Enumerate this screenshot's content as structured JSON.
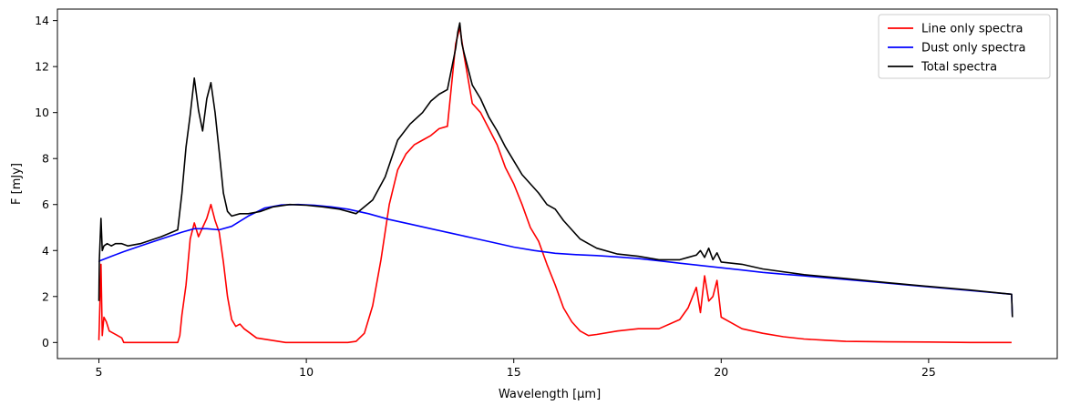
{
  "chart_data": {
    "type": "line",
    "title": "",
    "xlabel": "Wavelength [μm]",
    "ylabel": "F [mJy]",
    "xlim": [
      4.0,
      28.1
    ],
    "ylim": [
      -0.7,
      14.5
    ],
    "xticks": [
      5,
      10,
      15,
      20,
      25
    ],
    "yticks": [
      0,
      2,
      4,
      6,
      8,
      10,
      12,
      14
    ],
    "grid": false,
    "legend_position": "top-right",
    "series": [
      {
        "name": "Line only spectra",
        "color": "#ff0000",
        "x": [
          5.0,
          5.05,
          5.08,
          5.12,
          5.18,
          5.25,
          5.35,
          5.45,
          5.55,
          5.6,
          6.0,
          6.5,
          6.9,
          6.95,
          7.0,
          7.1,
          7.2,
          7.3,
          7.4,
          7.5,
          7.6,
          7.7,
          7.8,
          7.9,
          8.0,
          8.1,
          8.2,
          8.3,
          8.4,
          8.5,
          8.8,
          9.5,
          10.5,
          11.0,
          11.2,
          11.4,
          11.6,
          11.8,
          12.0,
          12.2,
          12.4,
          12.6,
          12.8,
          13.0,
          13.2,
          13.4,
          13.6,
          13.7,
          13.8,
          14.0,
          14.2,
          14.4,
          14.6,
          14.8,
          15.0,
          15.2,
          15.4,
          15.6,
          15.8,
          16.0,
          16.2,
          16.4,
          16.6,
          16.8,
          17.0,
          17.5,
          18.0,
          18.5,
          19.0,
          19.2,
          19.4,
          19.5,
          19.6,
          19.7,
          19.8,
          19.9,
          20.0,
          20.2,
          20.5,
          21.0,
          21.5,
          22.0,
          22.5,
          23.0,
          24.0,
          25.0,
          26.0,
          27.0
        ],
        "y": [
          0.1,
          3.4,
          0.3,
          1.1,
          0.9,
          0.5,
          0.4,
          0.3,
          0.2,
          0.0,
          0.0,
          0.0,
          0.0,
          0.3,
          1.2,
          2.5,
          4.5,
          5.2,
          4.6,
          5.0,
          5.4,
          6.0,
          5.3,
          4.8,
          3.5,
          2.0,
          1.0,
          0.7,
          0.8,
          0.6,
          0.2,
          0.0,
          0.0,
          0.0,
          0.05,
          0.4,
          1.6,
          3.6,
          6.0,
          7.5,
          8.2,
          8.6,
          8.8,
          9.0,
          9.3,
          9.4,
          13.0,
          13.7,
          12.5,
          10.4,
          10.0,
          9.3,
          8.6,
          7.6,
          6.9,
          6.0,
          5.0,
          4.4,
          3.4,
          2.5,
          1.5,
          0.9,
          0.5,
          0.3,
          0.35,
          0.5,
          0.6,
          0.6,
          1.0,
          1.5,
          2.4,
          1.3,
          2.9,
          1.8,
          2.0,
          2.7,
          1.1,
          0.9,
          0.6,
          0.4,
          0.25,
          0.15,
          0.1,
          0.05,
          0.03,
          0.02,
          0.0,
          0.0
        ]
      },
      {
        "name": "Dust only spectra",
        "color": "#0000ff",
        "x": [
          5.0,
          5.02,
          5.3,
          5.6,
          6.0,
          6.5,
          7.0,
          7.3,
          7.6,
          7.9,
          8.2,
          8.6,
          9.0,
          9.4,
          9.8,
          10.2,
          10.6,
          11.0,
          11.5,
          12.0,
          12.5,
          13.0,
          13.5,
          14.0,
          14.5,
          15.0,
          15.5,
          16.0,
          16.5,
          17.0,
          17.5,
          18.0,
          18.5,
          19.0,
          19.5,
          20.0,
          20.5,
          21.0,
          21.5,
          22.0,
          23.0,
          24.0,
          25.0,
          26.0,
          27.0,
          27.02
        ],
        "y": [
          3.5,
          3.55,
          3.75,
          3.95,
          4.2,
          4.5,
          4.8,
          4.95,
          4.95,
          4.9,
          5.05,
          5.5,
          5.85,
          5.98,
          6.0,
          5.97,
          5.9,
          5.8,
          5.6,
          5.35,
          5.15,
          4.95,
          4.75,
          4.55,
          4.35,
          4.15,
          4.0,
          3.88,
          3.82,
          3.78,
          3.72,
          3.65,
          3.55,
          3.45,
          3.35,
          3.25,
          3.15,
          3.05,
          2.97,
          2.9,
          2.74,
          2.58,
          2.42,
          2.26,
          2.1,
          1.1
        ]
      },
      {
        "name": "Total spectra",
        "color": "#000000",
        "x": [
          5.0,
          5.01,
          5.05,
          5.08,
          5.12,
          5.2,
          5.3,
          5.4,
          5.55,
          5.7,
          6.0,
          6.5,
          6.9,
          7.0,
          7.1,
          7.2,
          7.3,
          7.4,
          7.5,
          7.6,
          7.7,
          7.8,
          7.9,
          8.0,
          8.1,
          8.2,
          8.4,
          8.6,
          8.9,
          9.2,
          9.6,
          10.0,
          10.4,
          10.8,
          11.2,
          11.6,
          11.9,
          12.2,
          12.5,
          12.8,
          13.0,
          13.2,
          13.4,
          13.6,
          13.65,
          13.7,
          13.75,
          13.8,
          14.0,
          14.2,
          14.4,
          14.6,
          14.8,
          15.0,
          15.2,
          15.4,
          15.6,
          15.8,
          16.0,
          16.2,
          16.4,
          16.6,
          16.8,
          17.0,
          17.5,
          18.0,
          18.5,
          19.0,
          19.2,
          19.4,
          19.5,
          19.6,
          19.7,
          19.8,
          19.9,
          20.0,
          20.5,
          21.0,
          22.0,
          23.0,
          24.0,
          25.0,
          26.0,
          27.0,
          27.02
        ],
        "y": [
          1.8,
          3.6,
          5.4,
          4.0,
          4.2,
          4.3,
          4.2,
          4.3,
          4.3,
          4.2,
          4.3,
          4.6,
          4.9,
          6.5,
          8.5,
          9.9,
          11.5,
          10.1,
          9.2,
          10.6,
          11.3,
          10.0,
          8.3,
          6.5,
          5.7,
          5.5,
          5.6,
          5.6,
          5.7,
          5.9,
          6.0,
          5.97,
          5.9,
          5.8,
          5.6,
          6.2,
          7.2,
          8.8,
          9.5,
          10.0,
          10.5,
          10.8,
          11.0,
          12.8,
          13.5,
          13.9,
          13.0,
          12.6,
          11.2,
          10.6,
          9.8,
          9.2,
          8.5,
          7.9,
          7.3,
          6.9,
          6.5,
          6.0,
          5.8,
          5.3,
          4.9,
          4.5,
          4.3,
          4.1,
          3.85,
          3.75,
          3.6,
          3.6,
          3.7,
          3.8,
          4.0,
          3.7,
          4.1,
          3.6,
          3.9,
          3.5,
          3.4,
          3.2,
          2.95,
          2.78,
          2.6,
          2.44,
          2.28,
          2.1,
          1.1
        ]
      }
    ]
  }
}
